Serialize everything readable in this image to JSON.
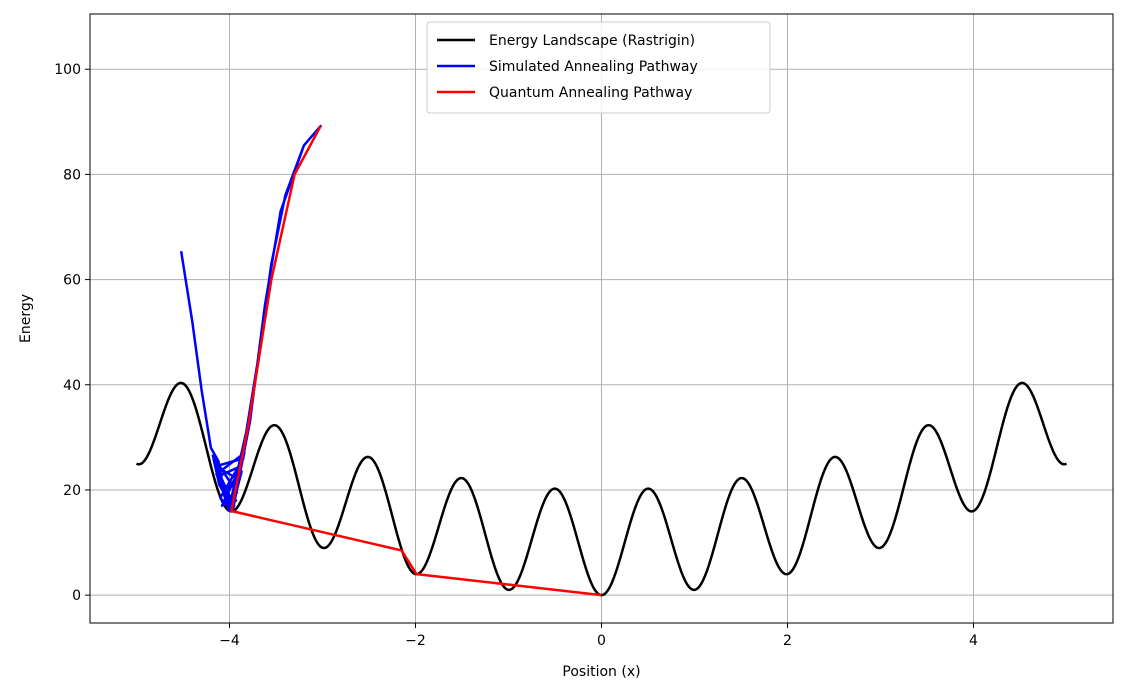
{
  "chart_data": {
    "type": "line",
    "title": "",
    "xlabel": "Position (x)",
    "ylabel": "Energy",
    "xlim": [
      -5.5,
      5.5
    ],
    "ylim": [
      -5.3,
      110.5
    ],
    "xticks": [
      -4,
      -2,
      0,
      2,
      4
    ],
    "yticks": [
      0,
      20,
      40,
      60,
      80,
      100
    ],
    "xtick_labels": [
      "−4",
      "−2",
      "0",
      "2",
      "4"
    ],
    "ytick_labels": [
      "0",
      "20",
      "40",
      "60",
      "80",
      "100"
    ],
    "grid": true,
    "legend_position": "top-center",
    "series": [
      {
        "name": "Energy Landscape (Rastrigin)",
        "color": "#000000",
        "kind": "function",
        "function": "rastrigin_A10",
        "domain": [
          -5,
          5
        ]
      },
      {
        "name": "Simulated Annealing Pathway",
        "color": "#0000ff",
        "kind": "path",
        "points": [
          [
            -4.52,
            65.4
          ],
          [
            -4.4,
            52.0
          ],
          [
            -4.3,
            39.0
          ],
          [
            -4.2,
            28.0
          ],
          [
            -4.12,
            25.5
          ],
          [
            -4.05,
            19.0
          ],
          [
            -3.98,
            16.0
          ],
          [
            -3.9,
            22.0
          ],
          [
            -4.15,
            24.5
          ],
          [
            -3.85,
            26.0
          ],
          [
            -4.1,
            18.5
          ],
          [
            -3.97,
            16.0
          ],
          [
            -4.18,
            26.5
          ],
          [
            -3.92,
            19.5
          ],
          [
            -4.08,
            17.0
          ],
          [
            -3.88,
            24.5
          ],
          [
            -4.13,
            22.5
          ],
          [
            -3.99,
            16.0
          ],
          [
            -4.16,
            25.0
          ],
          [
            -3.95,
            17.0
          ],
          [
            -4.14,
            23.0
          ],
          [
            -3.84,
            27.0
          ],
          [
            -4.01,
            16.1
          ],
          [
            -3.82,
            31.0
          ],
          [
            -3.7,
            44.0
          ],
          [
            -3.55,
            63.0
          ],
          [
            -3.4,
            76.0
          ],
          [
            -3.2,
            85.5
          ],
          [
            -3.02,
            89.2
          ],
          [
            -3.2,
            85.5
          ],
          [
            -3.45,
            73.0
          ],
          [
            -3.62,
            55.0
          ],
          [
            -3.78,
            33.0
          ],
          [
            -3.96,
            16.5
          ],
          [
            -4.11,
            21.0
          ],
          [
            -4.17,
            25.8
          ],
          [
            -4.04,
            18.0
          ],
          [
            -3.93,
            18.0
          ],
          [
            -4.06,
            19.5
          ],
          [
            -3.87,
            23.5
          ],
          [
            -3.98,
            16.0
          ]
        ]
      },
      {
        "name": "Quantum Annealing Pathway",
        "color": "#ff0000",
        "kind": "path",
        "points": [
          [
            -3.02,
            89.2
          ],
          [
            -3.3,
            80.0
          ],
          [
            -3.55,
            60.0
          ],
          [
            -3.8,
            32.0
          ],
          [
            -3.98,
            16.0
          ],
          [
            -2.15,
            8.5
          ],
          [
            -1.99,
            4.0
          ],
          [
            0.0,
            0.0
          ]
        ]
      }
    ]
  }
}
